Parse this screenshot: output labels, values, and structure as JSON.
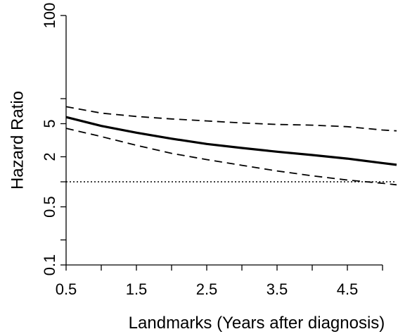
{
  "chart_data": {
    "type": "line",
    "xlabel": "Landmarks (Years after diagnosis)",
    "ylabel": "Hazard Ratio",
    "yscale": "log",
    "xlim": [
      0.5,
      5.2
    ],
    "ylim": [
      0.1,
      100
    ],
    "x_ticks": [
      0.5,
      1.5,
      2.5,
      3.5,
      4.5
    ],
    "x_tick_labels": [
      "0.5",
      "1.5",
      "2.5",
      "3.5",
      "4.5"
    ],
    "x_minor_ticks": [
      1.0,
      2.0,
      3.0,
      4.0,
      5.0
    ],
    "y_ticks": [
      0.1,
      0.5,
      2,
      5,
      100
    ],
    "y_tick_labels": [
      "0.1",
      "0.5",
      "2",
      "5",
      "100"
    ],
    "y_minor_ticks": [
      0.2,
      1,
      10
    ],
    "reference_line": {
      "y": 1,
      "style": "dotted"
    },
    "series": [
      {
        "style": "solid",
        "x": [
          0.5,
          1.0,
          1.5,
          2.0,
          2.5,
          3.0,
          3.5,
          4.0,
          4.5,
          5.0,
          5.2
        ],
        "values": [
          6.0,
          4.7,
          3.9,
          3.3,
          2.85,
          2.55,
          2.3,
          2.1,
          1.9,
          1.68,
          1.6
        ]
      },
      {
        "style": "dashed",
        "x": [
          0.5,
          1.0,
          1.5,
          2.0,
          2.5,
          3.0,
          3.5,
          4.0,
          4.5,
          5.0,
          5.2
        ],
        "values": [
          8.0,
          6.7,
          6.1,
          5.7,
          5.4,
          5.1,
          4.9,
          4.8,
          4.6,
          4.2,
          4.1
        ]
      },
      {
        "style": "dashed",
        "x": [
          0.5,
          1.0,
          1.5,
          2.0,
          2.5,
          3.0,
          3.5,
          4.0,
          4.5,
          5.0,
          5.2
        ],
        "values": [
          4.4,
          3.5,
          2.75,
          2.2,
          1.85,
          1.58,
          1.35,
          1.18,
          1.05,
          0.96,
          0.92
        ]
      }
    ]
  }
}
